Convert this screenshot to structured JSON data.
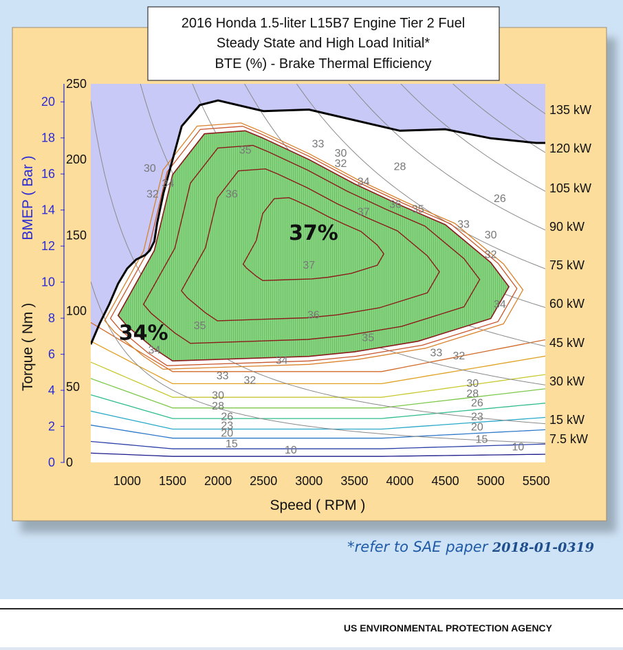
{
  "chart_data": {
    "type": "contour",
    "title_lines": [
      "2016 Honda 1.5-liter L15B7 Engine Tier 2 Fuel",
      "Steady State and High Load Initial*",
      "BTE (%) - Brake Thermal Efficiency"
    ],
    "xlabel": "Speed ( RPM )",
    "ylabel_left": "Torque ( Nm )",
    "ylabel_bmep": "BMEP ( Bar )",
    "xlim": [
      600,
      5600
    ],
    "ylim_torque": [
      0,
      250
    ],
    "ylim_bmep": [
      0,
      21
    ],
    "x_ticks": [
      1000,
      1500,
      2000,
      2500,
      3000,
      3500,
      4000,
      4500,
      5000,
      5500
    ],
    "torque_ticks": [
      0,
      50,
      100,
      150,
      200,
      250
    ],
    "bmep_ticks": [
      0,
      2,
      4,
      6,
      8,
      10,
      12,
      14,
      16,
      18,
      20
    ],
    "max_torque_curve": {
      "rpm": [
        600,
        700,
        800,
        900,
        1000,
        1100,
        1200,
        1250,
        1300,
        1330,
        1400,
        1500,
        1600,
        1800,
        2000,
        2500,
        3000,
        4000,
        4500,
        5000,
        5500
      ],
      "torque": [
        78,
        92,
        104,
        118,
        128,
        134,
        137,
        140,
        146,
        158,
        178,
        200,
        222,
        236,
        239,
        232,
        233,
        219,
        220,
        214,
        211
      ]
    },
    "power_lines_kw": [
      7.5,
      15,
      30,
      45,
      60,
      75,
      90,
      105,
      120,
      135
    ],
    "power_labels": [
      "135 kW",
      "120 kW",
      "105 kW",
      "90 kW",
      "75 kW",
      "60 kW",
      "45 kW",
      "30 kW",
      "15 kW",
      "7.5 kW"
    ],
    "bte_contour_levels": [
      10,
      15,
      20,
      23,
      26,
      28,
      30,
      32,
      33,
      34,
      35,
      36,
      37
    ],
    "peak_bte_label": "37%",
    "low_speed_bte_label": "34%",
    "bte_region_34_boundary": {
      "rpm": [
        900,
        1300,
        1500,
        1850,
        2300,
        2500,
        3000,
        3500,
        4000,
        4500,
        5000,
        5200,
        5000,
        4200,
        3500,
        3000,
        2000,
        1500,
        1300,
        1000,
        900
      ],
      "torque": [
        97,
        140,
        190,
        217,
        219,
        214,
        200,
        184,
        170,
        157,
        132,
        116,
        95,
        80,
        73,
        70,
        68,
        67,
        75,
        90,
        97
      ]
    },
    "line_colors": {
      "bte_high": "#8b1a1a",
      "bte_region_fill": "#7ccf75",
      "power": "#8a8a8a",
      "max_torque": "#000000"
    }
  },
  "footnote": {
    "prefix": "*refer to SAE paper ",
    "code": "2018-01-0319"
  },
  "footer_agency": "US ENVIRONMENTAL PROTECTION AGENCY"
}
